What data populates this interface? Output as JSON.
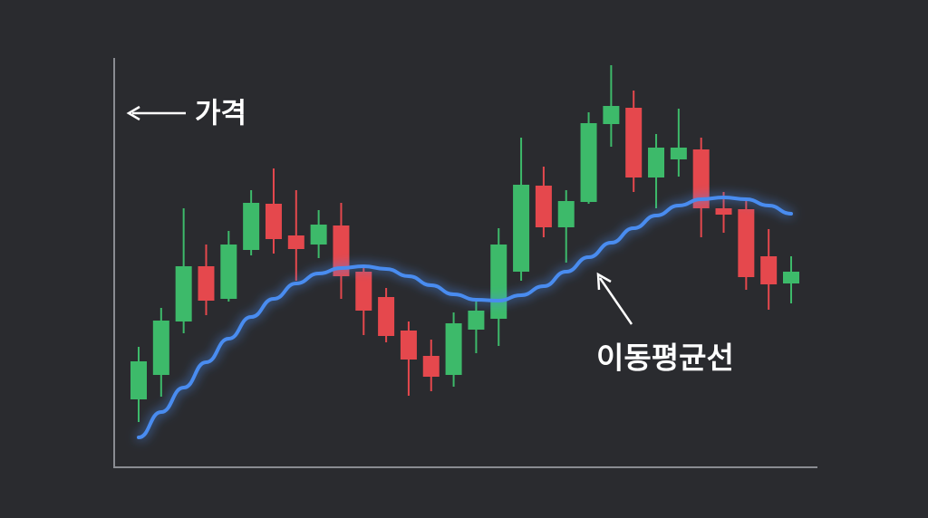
{
  "chart_data": {
    "type": "candlestick",
    "annotations": [
      {
        "text": "가격"
      },
      {
        "text": "이동평균선"
      }
    ],
    "ylim": [
      0,
      450
    ],
    "up_color": "#3dba6a",
    "down_color": "#e5484d",
    "open": [
      75,
      102,
      161,
      222,
      186,
      240,
      291,
      256,
      246,
      267,
      216,
      188,
      151,
      123,
      102,
      152,
      164,
      216,
      311,
      265,
      293,
      379,
      397,
      320,
      340,
      351,
      286,
      285,
      233,
      203
    ],
    "high": [
      133,
      176,
      286,
      246,
      261,
      306,
      330,
      306,
      284,
      292,
      223,
      198,
      161,
      141,
      171,
      183,
      264,
      364,
      332,
      306,
      392,
      444,
      416,
      368,
      396,
      364,
      304,
      294,
      263,
      233
    ],
    "low": [
      50,
      78,
      148,
      168,
      183,
      234,
      236,
      206,
      231,
      186,
      146,
      138,
      79,
      84,
      89,
      126,
      134,
      206,
      254,
      226,
      291,
      354,
      304,
      286,
      321,
      254,
      259,
      196,
      174,
      181
    ],
    "close": [
      117,
      162,
      222,
      184,
      246,
      292,
      252,
      241,
      268,
      211,
      173,
      145,
      119,
      100,
      159,
      173,
      246,
      312,
      265,
      294,
      380,
      399,
      320,
      353,
      353,
      286,
      279,
      210,
      202,
      216
    ],
    "moving_average": {
      "color": "#4a8cf0",
      "values": [
        33,
        61,
        88,
        116,
        142,
        166,
        186,
        203,
        214,
        220,
        222,
        219,
        211,
        201,
        191,
        185,
        184,
        190,
        200,
        216,
        232,
        248,
        264,
        278,
        289,
        296,
        298,
        296,
        289,
        280
      ]
    },
    "grid": false
  }
}
